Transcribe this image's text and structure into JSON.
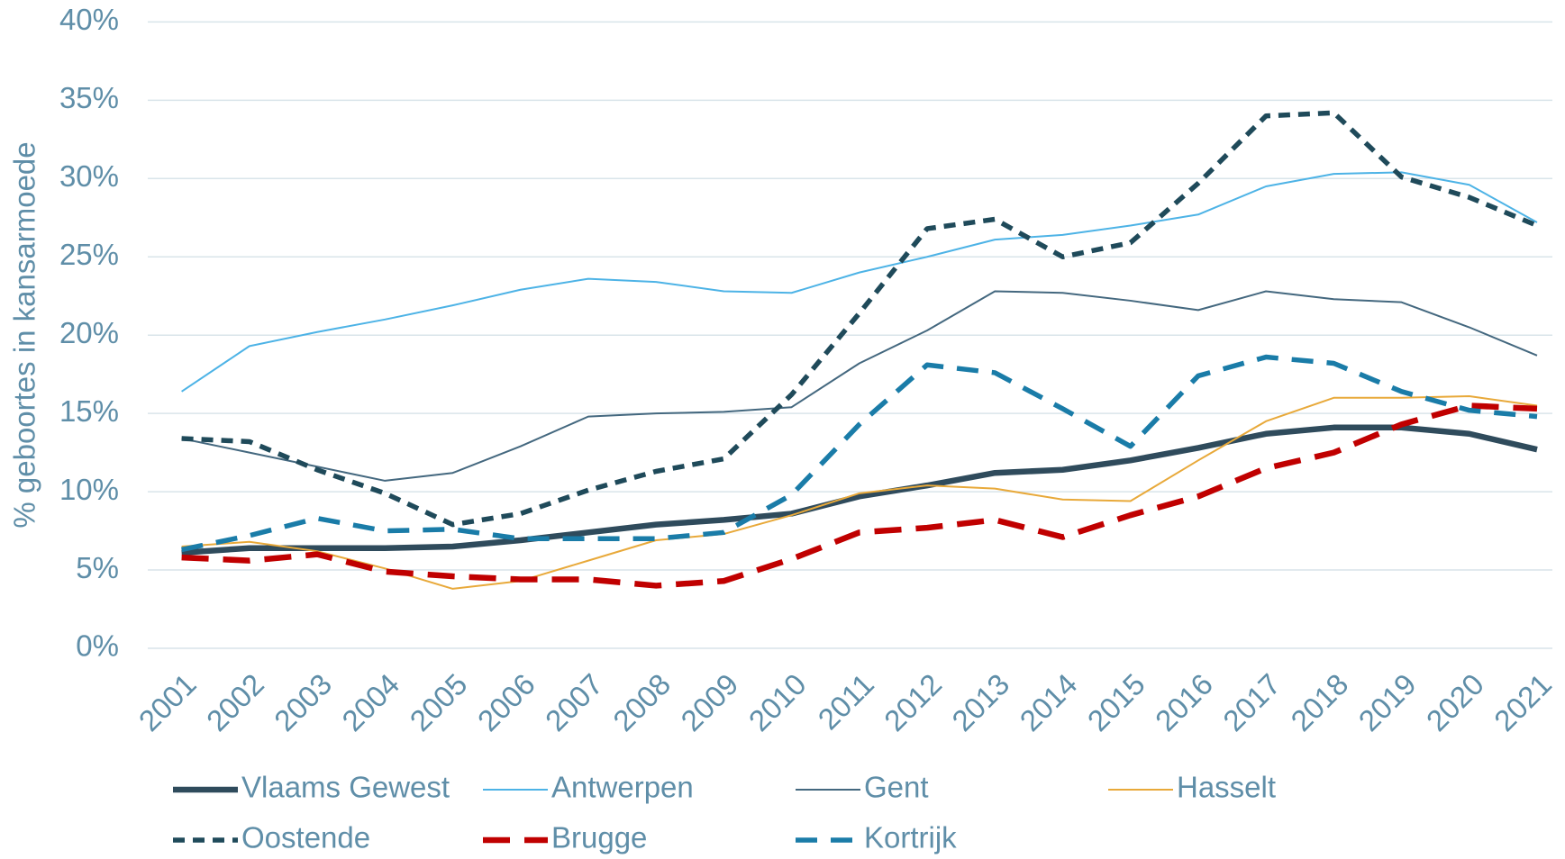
{
  "chart_data": {
    "type": "line",
    "y_label": "% geboortes in kansarmoede",
    "categories": [
      "2001",
      "2002",
      "2003",
      "2004",
      "2005",
      "2006",
      "2007",
      "2008",
      "2009",
      "2010",
      "2011",
      "2012",
      "2013",
      "2014",
      "2015",
      "2016",
      "2017",
      "2018",
      "2019",
      "2020",
      "2021"
    ],
    "ylim": [
      0,
      40
    ],
    "yticks": [
      {
        "value": 0,
        "label": "0%"
      },
      {
        "value": 5,
        "label": "5%"
      },
      {
        "value": 10,
        "label": "10%"
      },
      {
        "value": 15,
        "label": "15%"
      },
      {
        "value": 20,
        "label": "20%"
      },
      {
        "value": 25,
        "label": "25%"
      },
      {
        "value": 30,
        "label": "30%"
      },
      {
        "value": 35,
        "label": "35%"
      },
      {
        "value": 40,
        "label": "40%"
      }
    ],
    "grid": true,
    "legend": "bottom",
    "series": [
      {
        "name": "Vlaams Gewest",
        "color": "#2f4b5c",
        "style": "thick",
        "values": [
          6.1,
          6.4,
          6.4,
          6.4,
          6.5,
          6.9,
          7.4,
          7.9,
          8.2,
          8.6,
          9.7,
          10.4,
          11.2,
          11.4,
          12.0,
          12.8,
          13.7,
          14.1,
          14.1,
          13.7,
          12.7
        ]
      },
      {
        "name": "Antwerpen",
        "color": "#4db3e6",
        "style": "thin",
        "values": [
          16.4,
          19.3,
          20.2,
          21.0,
          21.9,
          22.9,
          23.6,
          23.4,
          22.8,
          22.7,
          24.0,
          25.0,
          26.1,
          26.4,
          27.0,
          27.7,
          29.5,
          30.3,
          30.4,
          29.6,
          27.2
        ]
      },
      {
        "name": "Gent",
        "color": "#44687f",
        "style": "thin",
        "values": [
          13.4,
          12.5,
          11.6,
          10.7,
          11.2,
          12.9,
          14.8,
          15.0,
          15.1,
          15.4,
          18.2,
          20.3,
          22.8,
          22.7,
          22.2,
          21.6,
          22.8,
          22.3,
          22.1,
          20.5,
          18.7
        ]
      },
      {
        "name": "Hasselt",
        "color": "#e8a93a",
        "style": "thin",
        "values": [
          6.5,
          6.8,
          6.2,
          5.1,
          3.8,
          4.3,
          5.6,
          6.9,
          7.3,
          8.5,
          9.9,
          10.4,
          10.2,
          9.5,
          9.4,
          12.0,
          14.5,
          16.0,
          16.0,
          16.1,
          15.5
        ]
      },
      {
        "name": "Oostende",
        "color": "#1f4a5a",
        "style": "dash",
        "values": [
          13.4,
          13.2,
          11.4,
          9.9,
          7.9,
          8.6,
          10.1,
          11.3,
          12.1,
          16.2,
          21.4,
          26.8,
          27.4,
          25.0,
          25.9,
          29.7,
          34.0,
          34.2,
          30.1,
          28.8,
          27.0
        ]
      },
      {
        "name": "Brugge",
        "color": "#c00000",
        "style": "long-dash",
        "values": [
          5.8,
          5.6,
          6.0,
          4.9,
          4.6,
          4.4,
          4.4,
          4.0,
          4.3,
          5.7,
          7.4,
          7.7,
          8.2,
          7.1,
          8.5,
          9.7,
          11.5,
          12.5,
          14.3,
          15.5,
          15.3
        ]
      },
      {
        "name": "Kortrijk",
        "color": "#1a7ca8",
        "style": "medium-dash",
        "values": [
          6.3,
          7.2,
          8.3,
          7.5,
          7.6,
          7.0,
          7.0,
          7.0,
          7.4,
          9.8,
          14.3,
          18.1,
          17.6,
          15.3,
          12.9,
          17.4,
          18.6,
          18.2,
          16.4,
          15.2,
          14.8
        ]
      }
    ]
  }
}
